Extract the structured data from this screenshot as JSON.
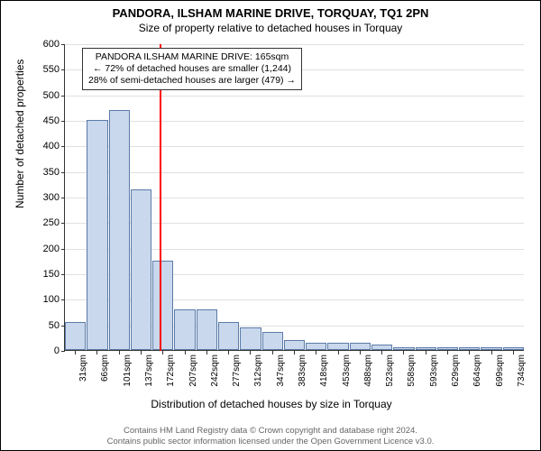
{
  "title": "PANDORA, ILSHAM MARINE DRIVE, TORQUAY, TQ1 2PN",
  "subtitle": "Size of property relative to detached houses in Torquay",
  "chart": {
    "type": "histogram",
    "ylabel": "Number of detached properties",
    "xlabel": "Distribution of detached houses by size in Torquay",
    "ylim": [
      0,
      600
    ],
    "ytick_step": 50,
    "bar_color": "#c9d8ec",
    "bar_border_color": "#5b7ba8",
    "grid_color": "#e0e0e0",
    "background_color": "#ffffff",
    "marker_line_color": "#ff0000",
    "marker_x": 165,
    "categories": [
      "31sqm",
      "66sqm",
      "101sqm",
      "137sqm",
      "172sqm",
      "207sqm",
      "242sqm",
      "277sqm",
      "312sqm",
      "347sqm",
      "383sqm",
      "418sqm",
      "453sqm",
      "488sqm",
      "523sqm",
      "558sqm",
      "593sqm",
      "629sqm",
      "664sqm",
      "699sqm",
      "734sqm"
    ],
    "values": [
      55,
      450,
      470,
      315,
      175,
      80,
      80,
      55,
      45,
      35,
      20,
      15,
      15,
      15,
      10,
      5,
      5,
      5,
      5,
      5,
      5
    ],
    "annotation": {
      "line1": "PANDORA ILSHAM MARINE DRIVE: 165sqm",
      "line2": "← 72% of detached houses are smaller (1,244)",
      "line3": "28% of semi-detached houses are larger (479) →"
    }
  },
  "footer": {
    "line1": "Contains HM Land Registry data © Crown copyright and database right 2024.",
    "line2": "Contains public sector information licensed under the Open Government Licence v3.0."
  }
}
